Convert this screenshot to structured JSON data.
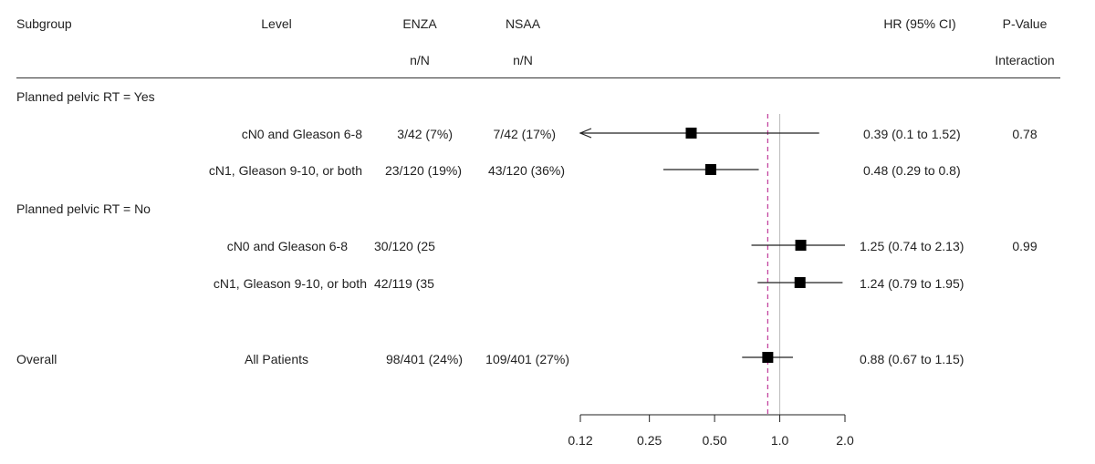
{
  "columns": {
    "subgroup": "Subgroup",
    "level": "Level",
    "enza": "ENZA",
    "nsaa": "NSAA",
    "hr": "HR (95% CI)",
    "pvalue": "P-Value",
    "enza_sub": "n/N",
    "nsaa_sub": "n/N",
    "pvalue_sub": "Interaction"
  },
  "groups": [
    {
      "label": "Planned pelvic RT = Yes"
    },
    {
      "label": "Planned pelvic RT = No"
    },
    {
      "label": "Overall"
    }
  ],
  "rows": [
    {
      "level": "cN0 and Gleason 6-8",
      "enza": "3/42 (7%)",
      "nsaa": "7/42 (17%)",
      "hr_text": "0.39 (0.1 to 1.52)",
      "p": "0.78"
    },
    {
      "level": "cN1, Gleason 9-10, or both",
      "enza": "23/120 (19%)",
      "nsaa": "43/120 (36%)",
      "hr_text": "0.48 (0.29 to 0.8)",
      "p": ""
    },
    {
      "level": "cN0 and Gleason 6-8",
      "enza": "30/120 (25",
      "nsaa": "",
      "hr_text": "1.25 (0.74 to 2.13)",
      "p": "0.99"
    },
    {
      "level": "cN1, Gleason 9-10, or both",
      "enza": "42/119 (35",
      "nsaa": "",
      "hr_text": "1.24 (0.79 to 1.95)",
      "p": ""
    },
    {
      "level": "All Patients",
      "enza": "98/401 (24%)",
      "nsaa": "109/401 (27%)",
      "hr_text": "0.88 (0.67 to 1.15)",
      "p": ""
    }
  ],
  "chart_data": {
    "type": "forest",
    "x_scale": "log",
    "xlim": [
      0.12,
      2.0
    ],
    "ticks": [
      0.12,
      0.25,
      0.5,
      1.0,
      2.0
    ],
    "tick_labels": [
      "0.12",
      "0.25",
      "0.50",
      "1.0",
      "2.0"
    ],
    "reference_line": 1.0,
    "overall_line": 0.88,
    "overall_line_color": "#c0399a",
    "reference_line_color": "#bbbbbb",
    "series": [
      {
        "hr": 0.39,
        "lo": 0.1,
        "hi": 1.52,
        "truncated_low": true
      },
      {
        "hr": 0.48,
        "lo": 0.29,
        "hi": 0.8
      },
      {
        "hr": 1.25,
        "lo": 0.74,
        "hi": 2.13
      },
      {
        "hr": 1.24,
        "lo": 0.79,
        "hi": 1.95
      },
      {
        "hr": 0.88,
        "lo": 0.67,
        "hi": 1.15
      }
    ]
  }
}
